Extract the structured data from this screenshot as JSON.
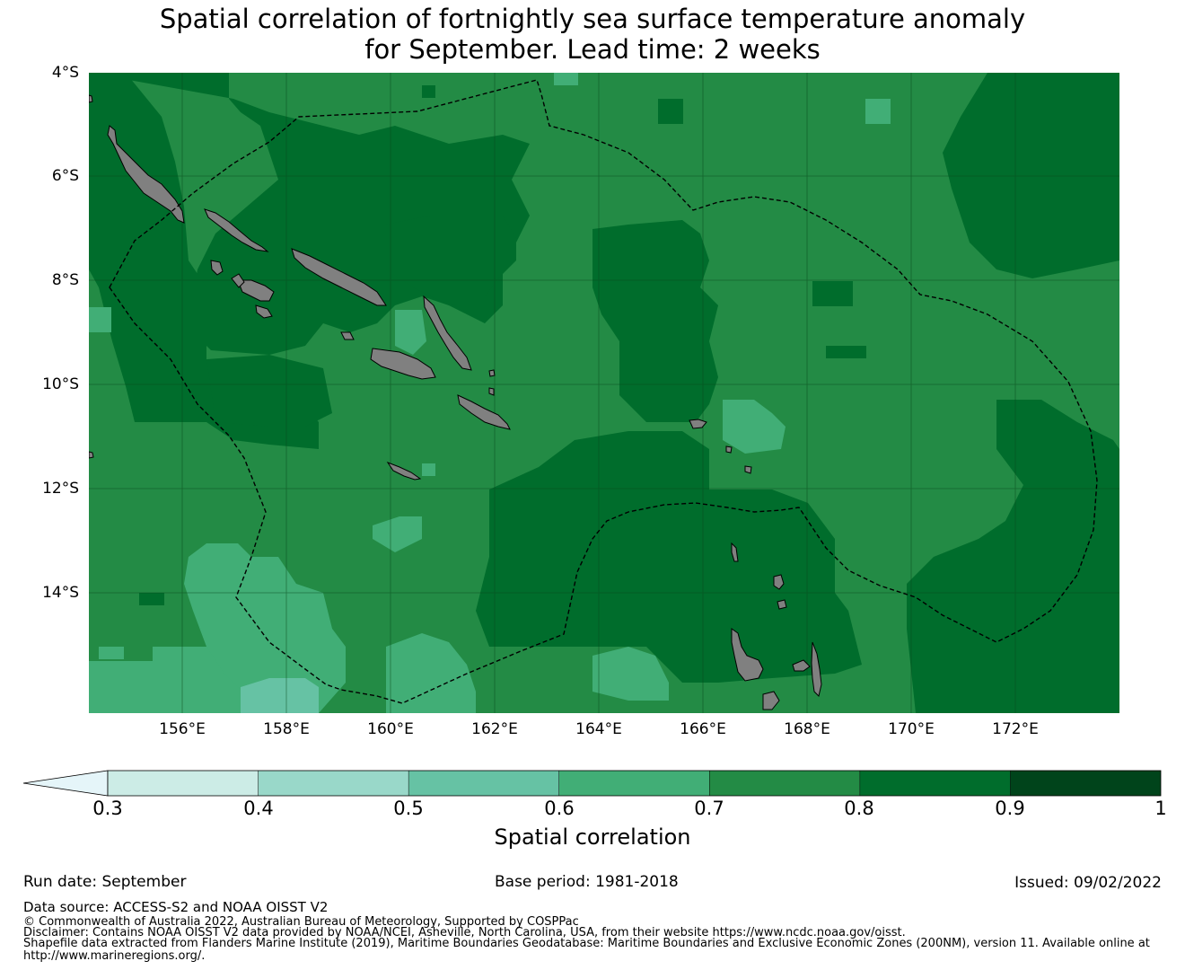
{
  "title_line1": "Spatial correlation of fortnightly sea surface temperature anomaly",
  "title_line2": "for September. Lead time: 2 weeks",
  "map": {
    "lat_ticks": [
      "4°S",
      "6°S",
      "8°S",
      "10°S",
      "12°S",
      "14°S"
    ],
    "lon_ticks": [
      "156°E",
      "158°E",
      "160°E",
      "162°E",
      "164°E",
      "166°E",
      "168°E",
      "170°E",
      "172°E"
    ],
    "land_color": "#808080",
    "default_class": "0.7-0.8"
  },
  "colorbar": {
    "label": "Spatial correlation",
    "ticks": [
      "0.3",
      "0.4",
      "0.5",
      "0.6",
      "0.7",
      "0.8",
      "0.9",
      "1"
    ],
    "bins": [
      {
        "range": "<0.3",
        "color": "#e5f5f9"
      },
      {
        "range": "0.3-0.4",
        "color": "#ccece6"
      },
      {
        "range": "0.4-0.5",
        "color": "#99d8c9"
      },
      {
        "range": "0.5-0.6",
        "color": "#66c2a4"
      },
      {
        "range": "0.6-0.7",
        "color": "#41ae76"
      },
      {
        "range": "0.7-0.8",
        "color": "#238b45"
      },
      {
        "range": "0.8-0.9",
        "color": "#006d2c"
      },
      {
        "range": "0.9-1",
        "color": "#00441b"
      }
    ]
  },
  "footer": {
    "run_date": "Run date: September",
    "base_period": "Base period: 1981-2018",
    "issued": "Issued: 09/02/2022",
    "data_source": "Data source: ACCESS-S2 and NOAA OISST V2",
    "copyright": "© Commonwealth of Australia 2022, Australian Bureau of Meteorology, Supported by COSPPac",
    "disclaimer": "Disclaimer: Contains NOAA OISST V2 data provided by NOAA/NCEI, Asheville, North Carolina, USA, from their website https://www.ncdc.noaa.gov/oisst.",
    "shapefile_line1": "Shapefile data extracted from Flanders Marine Institute (2019), Maritime Boundaries Geodatabase: Maritime Boundaries and Exclusive Economic Zones (200NM), version 11. Available online at",
    "shapefile_line2": "http://www.marineregions.org/."
  }
}
